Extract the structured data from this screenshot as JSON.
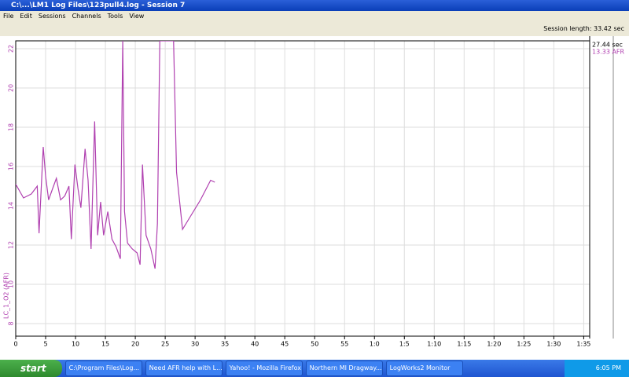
{
  "window": {
    "title": "C:\\...\\LM1 Log Files\\123pull4.log - Session 7"
  },
  "menu": [
    "File",
    "Edit",
    "Sessions",
    "Channels",
    "Tools",
    "View"
  ],
  "toolbar": {
    "session_length": "Session length: 33.42 sec"
  },
  "readout": {
    "time": "27.44 sec",
    "afr": "13.33 AFR"
  },
  "chart_data": {
    "type": "line",
    "y_label": "LC_1_O2 (AFR)",
    "x": [
      0,
      1.3,
      2.6,
      3.6,
      3.9,
      4.6,
      5.0,
      5.5,
      6.2,
      6.8,
      7.5,
      8.2,
      8.9,
      9.3,
      9.9,
      10.4,
      10.9,
      11.6,
      12.1,
      12.6,
      13.2,
      13.7,
      14.2,
      14.7,
      15.4,
      16.1,
      16.8,
      17.5,
      17.9,
      18.2,
      18.7,
      19.5,
      20.3,
      20.8,
      21.2,
      21.8,
      22.6,
      23.3,
      23.7,
      24.1,
      26.4,
      26.9,
      27.9,
      28.9,
      30.9,
      32.6,
      33.3
    ],
    "series": [
      {
        "name": "LC_1_O2 (AFR)",
        "color": "#b040b0",
        "values": [
          15.1,
          14.4,
          14.6,
          15.0,
          12.6,
          17.0,
          15.5,
          14.3,
          14.9,
          15.4,
          14.3,
          14.5,
          15.0,
          12.3,
          16.1,
          14.9,
          13.9,
          16.9,
          15.3,
          11.8,
          18.3,
          12.5,
          14.2,
          12.5,
          13.7,
          12.3,
          11.9,
          11.3,
          22.4,
          13.7,
          12.1,
          11.8,
          11.6,
          11.0,
          16.1,
          12.5,
          11.8,
          10.8,
          13.1,
          22.4,
          22.4,
          15.7,
          12.8,
          13.3,
          14.3,
          15.3,
          15.2
        ]
      }
    ],
    "xlim": [
      0,
      96
    ],
    "ylim": [
      7.36,
      22.4
    ],
    "xticks": [
      0,
      5,
      10,
      15,
      20,
      25,
      30,
      35,
      40,
      45,
      50,
      55,
      {
        "value": 60,
        "label": "1:0"
      },
      {
        "value": 65,
        "label": "1:5"
      },
      {
        "value": 70,
        "label": "1:10"
      },
      {
        "value": 75,
        "label": "1:15"
      },
      {
        "value": 80,
        "label": "1:20"
      },
      {
        "value": 85,
        "label": "1:25"
      },
      {
        "value": 90,
        "label": "1:30"
      },
      {
        "value": 95,
        "label": "1:35"
      }
    ],
    "yticks": [
      8,
      10,
      12,
      14,
      16,
      18,
      20,
      22
    ],
    "grid": true
  },
  "taskbar": {
    "start": "start",
    "tasks": [
      "C:\\Program Files\\Log...",
      "Need AFR help with L...",
      "Yahoo! - Mozilla Firefox",
      "Northern MI Dragway...",
      "LogWorks2 Monitor"
    ],
    "clock": "6:05 PM"
  }
}
